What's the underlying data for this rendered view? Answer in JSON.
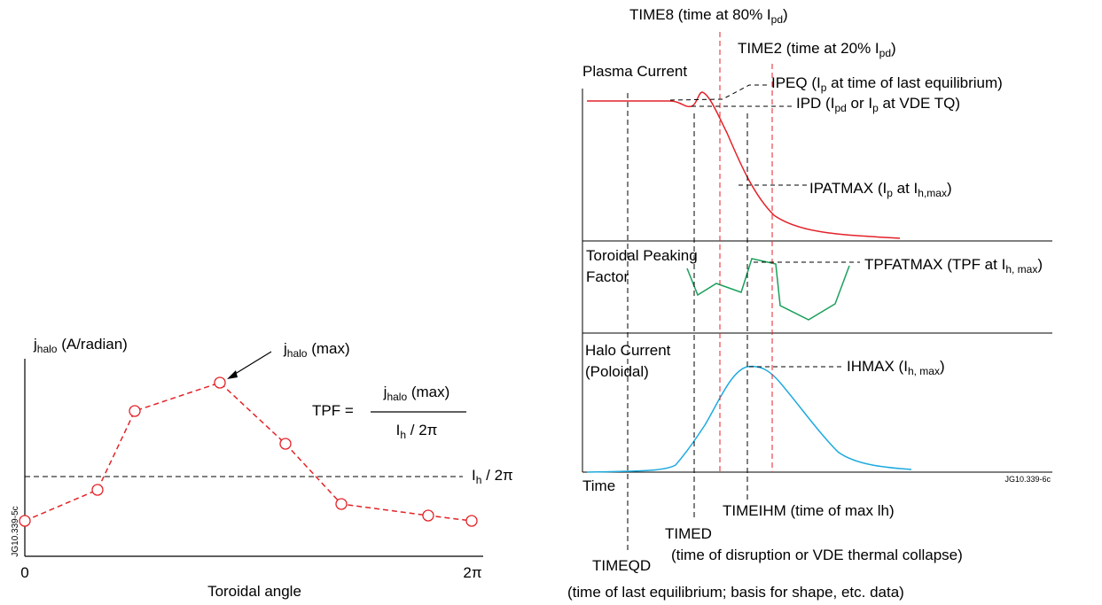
{
  "left": {
    "y_label": [
      "j",
      "halo",
      " (A/radian)"
    ],
    "max_label": [
      "j",
      "halo",
      " (max)"
    ],
    "tpf": [
      "TPF ="
    ],
    "numerator": [
      "j",
      "halo",
      " (max)"
    ],
    "denominator": [
      "I",
      "h",
      " / 2π"
    ],
    "ih_label": [
      "I",
      "h",
      " / 2π"
    ],
    "x_start": [
      "0"
    ],
    "x_end": [
      "2π"
    ],
    "x_title": [
      "Toroidal angle"
    ],
    "code": [
      "JG10.339-5c"
    ]
  },
  "right": {
    "time8": [
      "TIME8 (time at 80% I",
      "pd",
      ")"
    ],
    "time2": [
      "TIME2 (time at 20% I",
      "pd",
      ")"
    ],
    "plasma_current": [
      "Plasma Current"
    ],
    "ipeq": [
      "IPEQ (I",
      "p",
      " at time of last equilibrium)"
    ],
    "ipd": [
      "IPD (I",
      "pd",
      " or I",
      "p",
      " at VDE TQ)"
    ],
    "ipatmax": [
      "IPATMAX (I",
      "p",
      " at I",
      "h,max",
      ")"
    ],
    "tpf_label_1": [
      "Toroidal Peaking"
    ],
    "tpf_label_2": [
      "Factor"
    ],
    "tpfatmax": [
      "TPFATMAX (TPF at I",
      "h, max",
      ")"
    ],
    "halo_1": [
      "Halo Current"
    ],
    "halo_2": [
      "(Poloidal)"
    ],
    "ihmax": [
      "IHMAX (I",
      "h, max",
      ")"
    ],
    "code": [
      "JG10.339-6c"
    ],
    "time": [
      "Time"
    ],
    "timeihm": [
      "TIMEIHM (time of max lh)"
    ],
    "timed": [
      "TIMED"
    ],
    "timed_desc": [
      "(time of disruption or VDE thermal collapse)"
    ],
    "timeqd": [
      "TIMEQD"
    ],
    "timeqd_desc": [
      "(time of last equilibrium; basis for shape, etc. data)"
    ]
  }
}
